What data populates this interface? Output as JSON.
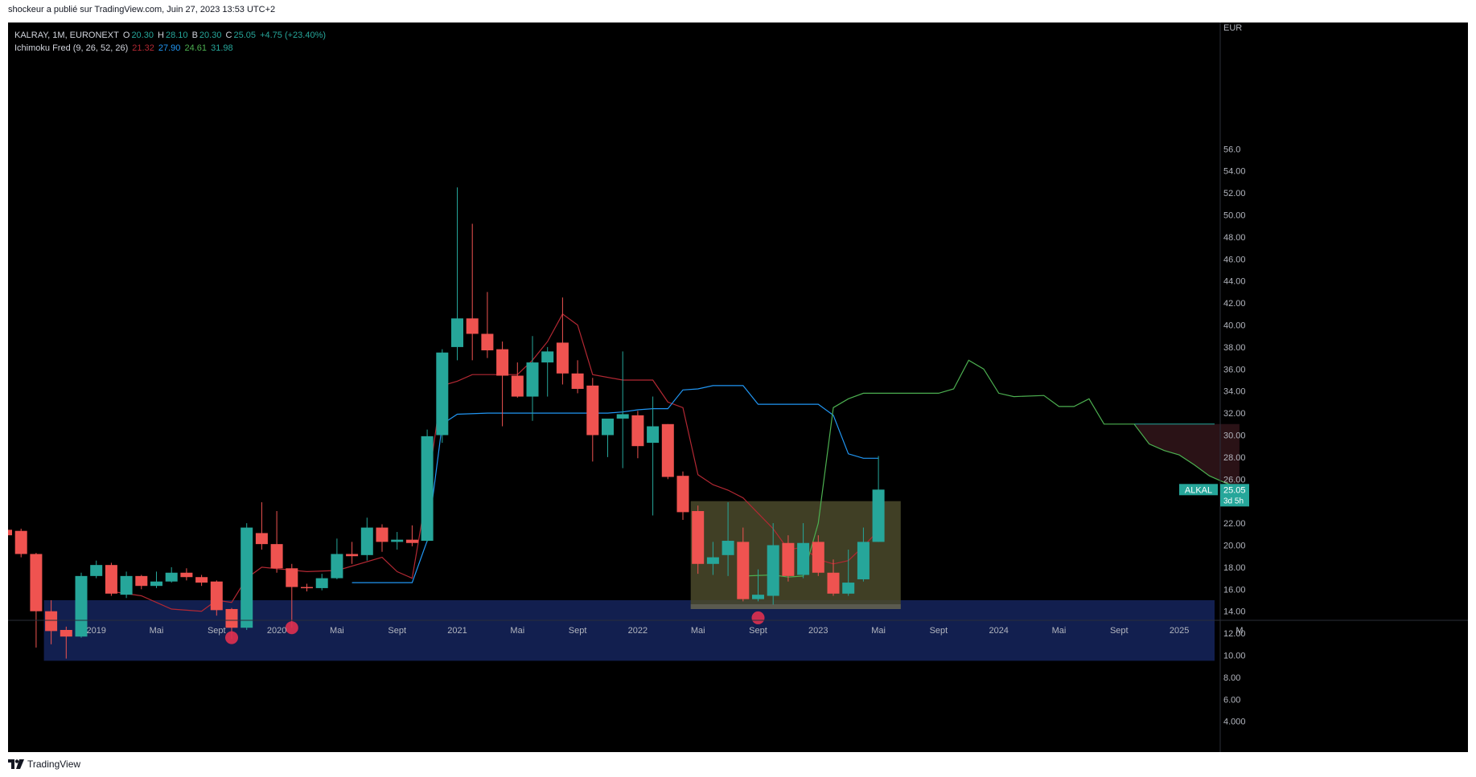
{
  "publisher_line": "shockeur a publié sur TradingView.com, Juin 27, 2023 13:53 UTC+2",
  "footer": {
    "brand": "TradingView"
  },
  "legend": {
    "symbol": "KALRAY, 1M, EURONEXT",
    "o_label": "O",
    "o_value": "20.30",
    "h_label": "H",
    "h_value": "28.10",
    "b_label": "B",
    "b_value": "20.30",
    "c_label": "C",
    "c_value": "25.05",
    "change": "+4.75 (+23.40%)",
    "indicator": "Ichimoku Fred (9, 26, 52, 26)",
    "ind_values": [
      "21.32",
      "27.90",
      "24.61",
      "31.98"
    ],
    "ind_colors": [
      "#b22833",
      "#2196f3",
      "#4caf50",
      "#26a69a"
    ]
  },
  "colors": {
    "up": "#26a69a",
    "down": "#ef5350",
    "tenkan": "#b22833",
    "kijun": "#2196f3",
    "chikou": "#4caf50",
    "support_zone": "#121f4f",
    "range_box": "#4b4a2b",
    "bear_cloud": "#2a1216"
  },
  "chart_data": {
    "type": "candlestick",
    "currency": "EUR",
    "ylim": [
      3.0,
      57.5
    ],
    "y_ticks": [
      "4.000",
      "6.00",
      "8.00",
      "10.00",
      "12.00",
      "14.00",
      "16.00",
      "18.00",
      "20.00",
      "22.00",
      "24.00",
      "26.00",
      "28.00",
      "30.00",
      "32.00",
      "34.00",
      "36.00",
      "38.00",
      "40.00",
      "42.00",
      "44.00",
      "46.00",
      "48.00",
      "50.00",
      "52.00",
      "54.00",
      "56.0"
    ],
    "x_labels": [
      {
        "label": "2019",
        "month": "2019-01"
      },
      {
        "label": "Mai",
        "month": "2019-05"
      },
      {
        "label": "Sept",
        "month": "2019-09"
      },
      {
        "label": "2020",
        "month": "2020-01"
      },
      {
        "label": "Mai",
        "month": "2020-05"
      },
      {
        "label": "Sept",
        "month": "2020-09"
      },
      {
        "label": "2021",
        "month": "2021-01"
      },
      {
        "label": "Mai",
        "month": "2021-05"
      },
      {
        "label": "Sept",
        "month": "2021-09"
      },
      {
        "label": "2022",
        "month": "2022-01"
      },
      {
        "label": "Mai",
        "month": "2022-05"
      },
      {
        "label": "Sept",
        "month": "2022-09"
      },
      {
        "label": "2023",
        "month": "2023-01"
      },
      {
        "label": "Mai",
        "month": "2023-05"
      },
      {
        "label": "Sept",
        "month": "2023-09"
      },
      {
        "label": "2024",
        "month": "2024-01"
      },
      {
        "label": "Mai",
        "month": "2024-05"
      },
      {
        "label": "Sept",
        "month": "2024-09"
      },
      {
        "label": "2025",
        "month": "2025-01"
      },
      {
        "label": "M",
        "month": "2025-05"
      }
    ],
    "ohlc": [
      {
        "t": "2018-07",
        "o": 21.4,
        "h": 21.8,
        "l": 17.6,
        "c": 20.9
      },
      {
        "t": "2018-08",
        "o": 21.3,
        "h": 21.5,
        "l": 18.9,
        "c": 19.2
      },
      {
        "t": "2018-09",
        "o": 19.2,
        "h": 19.3,
        "l": 10.7,
        "c": 14.0
      },
      {
        "t": "2018-10",
        "o": 14.0,
        "h": 15.0,
        "l": 11.0,
        "c": 12.2
      },
      {
        "t": "2018-11",
        "o": 12.3,
        "h": 12.6,
        "l": 9.7,
        "c": 11.7
      },
      {
        "t": "2018-12",
        "o": 11.7,
        "h": 17.5,
        "l": 11.6,
        "c": 17.2
      },
      {
        "t": "2019-01",
        "o": 17.2,
        "h": 18.6,
        "l": 17.0,
        "c": 18.2
      },
      {
        "t": "2019-02",
        "o": 18.2,
        "h": 18.4,
        "l": 15.4,
        "c": 15.6
      },
      {
        "t": "2019-03",
        "o": 15.5,
        "h": 17.6,
        "l": 15.2,
        "c": 17.2
      },
      {
        "t": "2019-04",
        "o": 17.2,
        "h": 17.3,
        "l": 16.0,
        "c": 16.3
      },
      {
        "t": "2019-05",
        "o": 16.3,
        "h": 17.6,
        "l": 16.1,
        "c": 16.7
      },
      {
        "t": "2019-06",
        "o": 16.7,
        "h": 18.0,
        "l": 16.6,
        "c": 17.5
      },
      {
        "t": "2019-07",
        "o": 17.5,
        "h": 17.9,
        "l": 16.8,
        "c": 17.1
      },
      {
        "t": "2019-08",
        "o": 17.1,
        "h": 17.3,
        "l": 16.3,
        "c": 16.6
      },
      {
        "t": "2019-09",
        "o": 16.7,
        "h": 16.8,
        "l": 13.6,
        "c": 14.1
      },
      {
        "t": "2019-10",
        "o": 14.2,
        "h": 14.3,
        "l": 11.5,
        "c": 12.5
      },
      {
        "t": "2019-11",
        "o": 12.5,
        "h": 22.0,
        "l": 12.3,
        "c": 21.6
      },
      {
        "t": "2019-12",
        "o": 21.1,
        "h": 23.9,
        "l": 19.6,
        "c": 20.1
      },
      {
        "t": "2020-01",
        "o": 20.1,
        "h": 23.1,
        "l": 17.5,
        "c": 17.9
      },
      {
        "t": "2020-02",
        "o": 17.9,
        "h": 18.3,
        "l": 12.5,
        "c": 16.2
      },
      {
        "t": "2020-03",
        "o": 16.2,
        "h": 16.5,
        "l": 15.8,
        "c": 16.1
      },
      {
        "t": "2020-04",
        "o": 16.1,
        "h": 17.4,
        "l": 15.9,
        "c": 17.0
      },
      {
        "t": "2020-05",
        "o": 17.0,
        "h": 20.6,
        "l": 16.9,
        "c": 19.2
      },
      {
        "t": "2020-06",
        "o": 19.2,
        "h": 20.3,
        "l": 18.3,
        "c": 19.0
      },
      {
        "t": "2020-07",
        "o": 19.1,
        "h": 22.5,
        "l": 18.6,
        "c": 21.6
      },
      {
        "t": "2020-08",
        "o": 21.6,
        "h": 21.9,
        "l": 19.4,
        "c": 20.3
      },
      {
        "t": "2020-09",
        "o": 20.3,
        "h": 21.2,
        "l": 19.6,
        "c": 20.5
      },
      {
        "t": "2020-10",
        "o": 20.5,
        "h": 21.8,
        "l": 19.9,
        "c": 20.2
      },
      {
        "t": "2020-11",
        "o": 20.4,
        "h": 30.5,
        "l": 20.3,
        "c": 29.9
      },
      {
        "t": "2020-12",
        "o": 30.0,
        "h": 37.8,
        "l": 29.3,
        "c": 37.5
      },
      {
        "t": "2021-01",
        "o": 38.0,
        "h": 52.5,
        "l": 36.8,
        "c": 40.6
      },
      {
        "t": "2021-02",
        "o": 40.6,
        "h": 49.2,
        "l": 36.8,
        "c": 39.2
      },
      {
        "t": "2021-03",
        "o": 39.2,
        "h": 43.0,
        "l": 37.0,
        "c": 37.7
      },
      {
        "t": "2021-04",
        "o": 37.8,
        "h": 38.5,
        "l": 30.8,
        "c": 35.4
      },
      {
        "t": "2021-05",
        "o": 35.4,
        "h": 36.6,
        "l": 33.4,
        "c": 33.5
      },
      {
        "t": "2021-06",
        "o": 33.5,
        "h": 39.0,
        "l": 31.3,
        "c": 36.6
      },
      {
        "t": "2021-07",
        "o": 36.6,
        "h": 38.0,
        "l": 33.5,
        "c": 37.6
      },
      {
        "t": "2021-08",
        "o": 38.4,
        "h": 42.5,
        "l": 34.6,
        "c": 35.6
      },
      {
        "t": "2021-09",
        "o": 35.6,
        "h": 36.8,
        "l": 33.8,
        "c": 34.2
      },
      {
        "t": "2021-10",
        "o": 34.5,
        "h": 35.2,
        "l": 27.6,
        "c": 30.0
      },
      {
        "t": "2021-11",
        "o": 30.0,
        "h": 31.5,
        "l": 28.0,
        "c": 31.5
      },
      {
        "t": "2021-12",
        "o": 31.5,
        "h": 37.6,
        "l": 27.0,
        "c": 31.9
      },
      {
        "t": "2022-01",
        "o": 31.8,
        "h": 32.2,
        "l": 27.9,
        "c": 29.0
      },
      {
        "t": "2022-02",
        "o": 29.3,
        "h": 33.5,
        "l": 22.7,
        "c": 30.8
      },
      {
        "t": "2022-03",
        "o": 31.0,
        "h": 31.0,
        "l": 26.0,
        "c": 26.2
      },
      {
        "t": "2022-04",
        "o": 26.3,
        "h": 26.7,
        "l": 22.3,
        "c": 23.0
      },
      {
        "t": "2022-05",
        "o": 23.1,
        "h": 23.6,
        "l": 17.4,
        "c": 18.3
      },
      {
        "t": "2022-06",
        "o": 18.3,
        "h": 20.3,
        "l": 17.3,
        "c": 18.9
      },
      {
        "t": "2022-07",
        "o": 19.1,
        "h": 23.9,
        "l": 17.2,
        "c": 20.4
      },
      {
        "t": "2022-08",
        "o": 20.3,
        "h": 21.6,
        "l": 14.9,
        "c": 15.1
      },
      {
        "t": "2022-09",
        "o": 15.1,
        "h": 17.8,
        "l": 14.9,
        "c": 15.5
      },
      {
        "t": "2022-10",
        "o": 15.4,
        "h": 22.0,
        "l": 14.6,
        "c": 20.0
      },
      {
        "t": "2022-11",
        "o": 20.2,
        "h": 20.9,
        "l": 16.7,
        "c": 17.2
      },
      {
        "t": "2022-12",
        "o": 17.3,
        "h": 22.0,
        "l": 17.0,
        "c": 20.2
      },
      {
        "t": "2023-01",
        "o": 20.3,
        "h": 20.9,
        "l": 17.2,
        "c": 17.5
      },
      {
        "t": "2023-02",
        "o": 17.5,
        "h": 18.7,
        "l": 15.4,
        "c": 15.6
      },
      {
        "t": "2023-03",
        "o": 15.6,
        "h": 19.6,
        "l": 15.4,
        "c": 16.6
      },
      {
        "t": "2023-04",
        "o": 16.9,
        "h": 21.6,
        "l": 16.7,
        "c": 20.3
      },
      {
        "t": "2023-05",
        "o": 20.3,
        "h": 28.1,
        "l": 20.3,
        "c": 25.05
      }
    ],
    "ichimoku": {
      "tenkan": [
        [
          "2019-02",
          15.8
        ],
        [
          "2019-04",
          15.4
        ],
        [
          "2019-06",
          14.2
        ],
        [
          "2019-08",
          14.0
        ],
        [
          "2019-09",
          15.0
        ],
        [
          "2019-10",
          14.8
        ],
        [
          "2019-11",
          17.0
        ],
        [
          "2019-12",
          18.0
        ],
        [
          "2020-03",
          17.6
        ],
        [
          "2020-05",
          17.7
        ],
        [
          "2020-08",
          18.9
        ],
        [
          "2020-09",
          17.6
        ],
        [
          "2020-10",
          17.0
        ],
        [
          "2020-11",
          25.0
        ],
        [
          "2020-12",
          34.5
        ],
        [
          "2021-01",
          34.9
        ],
        [
          "2021-02",
          35.5
        ],
        [
          "2021-05",
          35.5
        ],
        [
          "2021-06",
          36.8
        ],
        [
          "2021-07",
          38.5
        ],
        [
          "2021-08",
          41.0
        ],
        [
          "2021-09",
          40.0
        ],
        [
          "2021-10",
          35.5
        ],
        [
          "2021-12",
          35.0
        ],
        [
          "2022-02",
          35.0
        ],
        [
          "2022-03",
          33.0
        ],
        [
          "2022-04",
          32.5
        ],
        [
          "2022-05",
          26.4
        ],
        [
          "2022-06",
          25.5
        ],
        [
          "2022-07",
          25.0
        ],
        [
          "2022-08",
          24.3
        ],
        [
          "2022-10",
          21.5
        ],
        [
          "2022-11",
          19.6
        ],
        [
          "2022-12",
          19.8
        ],
        [
          "2023-01",
          18.7
        ],
        [
          "2023-02",
          18.3
        ],
        [
          "2023-03",
          18.6
        ],
        [
          "2023-04",
          19.9
        ],
        [
          "2023-05",
          21.32
        ]
      ],
      "kijun": [
        [
          "2020-06",
          16.6
        ],
        [
          "2020-10",
          16.6
        ],
        [
          "2020-11",
          20.4
        ],
        [
          "2020-12",
          31.0
        ],
        [
          "2021-01",
          31.9
        ],
        [
          "2021-03",
          32.0
        ],
        [
          "2021-11",
          32.0
        ],
        [
          "2021-12",
          32.1
        ],
        [
          "2022-01",
          32.3
        ],
        [
          "2022-02",
          32.4
        ],
        [
          "2022-03",
          32.4
        ],
        [
          "2022-04",
          34.1
        ],
        [
          "2022-05",
          34.2
        ],
        [
          "2022-06",
          34.5
        ],
        [
          "2022-08",
          34.5
        ],
        [
          "2022-09",
          32.8
        ],
        [
          "2023-01",
          32.8
        ],
        [
          "2023-02",
          31.8
        ],
        [
          "2023-03",
          28.3
        ],
        [
          "2023-04",
          27.9
        ],
        [
          "2023-05",
          27.9
        ]
      ],
      "chikou": [
        [
          "2022-08",
          17.2
        ],
        [
          "2022-10",
          17.3
        ],
        [
          "2022-11",
          17.1
        ],
        [
          "2022-12",
          17.2
        ],
        [
          "2023-01",
          22.0
        ],
        [
          "2023-02",
          32.5
        ],
        [
          "2023-03",
          33.3
        ],
        [
          "2023-04",
          33.8
        ],
        [
          "2023-09",
          33.8
        ],
        [
          "2023-10",
          34.2
        ],
        [
          "2023-11",
          36.8
        ],
        [
          "2023-12",
          36.0
        ],
        [
          "2024-01",
          33.8
        ],
        [
          "2024-02",
          33.5
        ],
        [
          "2024-04",
          33.6
        ],
        [
          "2024-05",
          32.6
        ],
        [
          "2024-06",
          32.6
        ],
        [
          "2024-07",
          33.3
        ],
        [
          "2024-08",
          31.0
        ],
        [
          "2024-10",
          31.0
        ],
        [
          "2024-11",
          29.2
        ],
        [
          "2024-12",
          28.6
        ],
        [
          "2025-01",
          28.2
        ],
        [
          "2025-02",
          27.3
        ],
        [
          "2025-03",
          26.3
        ],
        [
          "2025-04",
          25.7
        ],
        [
          "2025-05",
          25.2
        ]
      ],
      "bear_cloud": {
        "from": "2024-10",
        "to": "2025-05",
        "top": 31.0,
        "bottom_series": [
          [
            "2024-10",
            31.0
          ],
          [
            "2024-11",
            29.2
          ],
          [
            "2024-12",
            28.6
          ],
          [
            "2025-01",
            28.2
          ],
          [
            "2025-02",
            27.3
          ],
          [
            "2025-03",
            26.3
          ],
          [
            "2025-04",
            25.7
          ],
          [
            "2025-05",
            25.2
          ]
        ]
      },
      "senkou_line": {
        "from": "2024-10",
        "to": "2025-05",
        "value": 31.0
      }
    },
    "zones": [
      {
        "name": "support-zone",
        "from": "2018-10",
        "to": "2025-05",
        "top": 15.0,
        "bottom": 9.5
      },
      {
        "name": "range-box",
        "from": "2022-05",
        "to": "2023-06",
        "top": 24.0,
        "bottom": 14.2
      }
    ],
    "markers": [
      {
        "t": "2019-10",
        "v": 11.6
      },
      {
        "t": "2020-02",
        "v": 12.5
      },
      {
        "t": "2022-09",
        "v": 13.4
      }
    ],
    "price_label": {
      "ticker": "ALKAL",
      "price": "25.05",
      "countdown": "3d 5h",
      "value": 25.05
    }
  }
}
